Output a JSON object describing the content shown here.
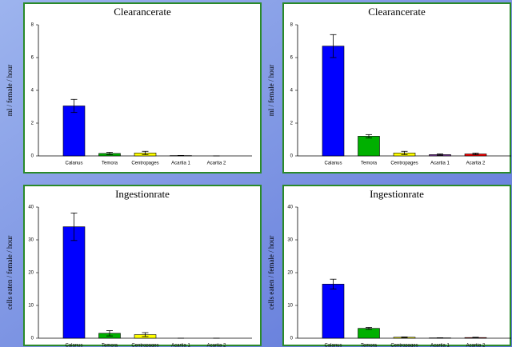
{
  "chart_data": [
    {
      "type": "bar",
      "title": "Clearancerate",
      "ylabel": "ml / female / hour",
      "categories": [
        "Calanus",
        "Temora",
        "Centropages",
        "Acartia 1",
        "Acartia 2"
      ],
      "values": [
        3.05,
        0.15,
        0.18,
        0.02,
        0
      ],
      "errors": [
        0.4,
        0.07,
        0.1,
        0.01,
        0
      ],
      "colors": [
        "#0000ff",
        "#00b000",
        "#ffff00",
        "#8040a0",
        "#ff0000"
      ],
      "ylim": [
        0,
        8
      ],
      "yticks": [
        0,
        2,
        4,
        6,
        8
      ]
    },
    {
      "type": "bar",
      "title": "Clearancerate",
      "ylabel": "ml / female / hour",
      "categories": [
        "Calanus",
        "Temora",
        "Centropages",
        "Acartia 1",
        "Acartia 2"
      ],
      "values": [
        6.7,
        1.2,
        0.18,
        0.08,
        0.12
      ],
      "errors": [
        0.7,
        0.1,
        0.1,
        0.04,
        0.05
      ],
      "colors": [
        "#0000ff",
        "#00b000",
        "#ffff00",
        "#8040a0",
        "#ff0000"
      ],
      "ylim": [
        0,
        8
      ],
      "yticks": [
        0,
        2,
        4,
        6,
        8
      ]
    },
    {
      "type": "bar",
      "title": "Ingestionrate",
      "ylabel": "cells eaten  / female / hour",
      "categories": [
        "Calanus",
        "Temora",
        "Centropages",
        "Acartia 1",
        "Acartia 2"
      ],
      "values": [
        34,
        1.5,
        1.1,
        0,
        0
      ],
      "errors": [
        4.2,
        0.8,
        0.6,
        0,
        0
      ],
      "colors": [
        "#0000ff",
        "#00b000",
        "#ffff00",
        "#8040a0",
        "#ff0000"
      ],
      "ylim": [
        0,
        40
      ],
      "yticks": [
        0,
        10,
        20,
        30,
        40
      ]
    },
    {
      "type": "bar",
      "title": "Ingestionrate",
      "ylabel": "cells eaten  / female / hour",
      "categories": [
        "Calanus",
        "Temora",
        "Centropages",
        "Acartia 1",
        "Acartia 2"
      ],
      "values": [
        16.5,
        3,
        0.3,
        0.1,
        0.2
      ],
      "errors": [
        1.5,
        0.3,
        0.1,
        0.05,
        0.1
      ],
      "colors": [
        "#0000ff",
        "#00b000",
        "#ffff00",
        "#8040a0",
        "#ff0000"
      ],
      "ylim": [
        0,
        40
      ],
      "yticks": [
        0,
        10,
        20,
        30,
        40
      ]
    }
  ]
}
